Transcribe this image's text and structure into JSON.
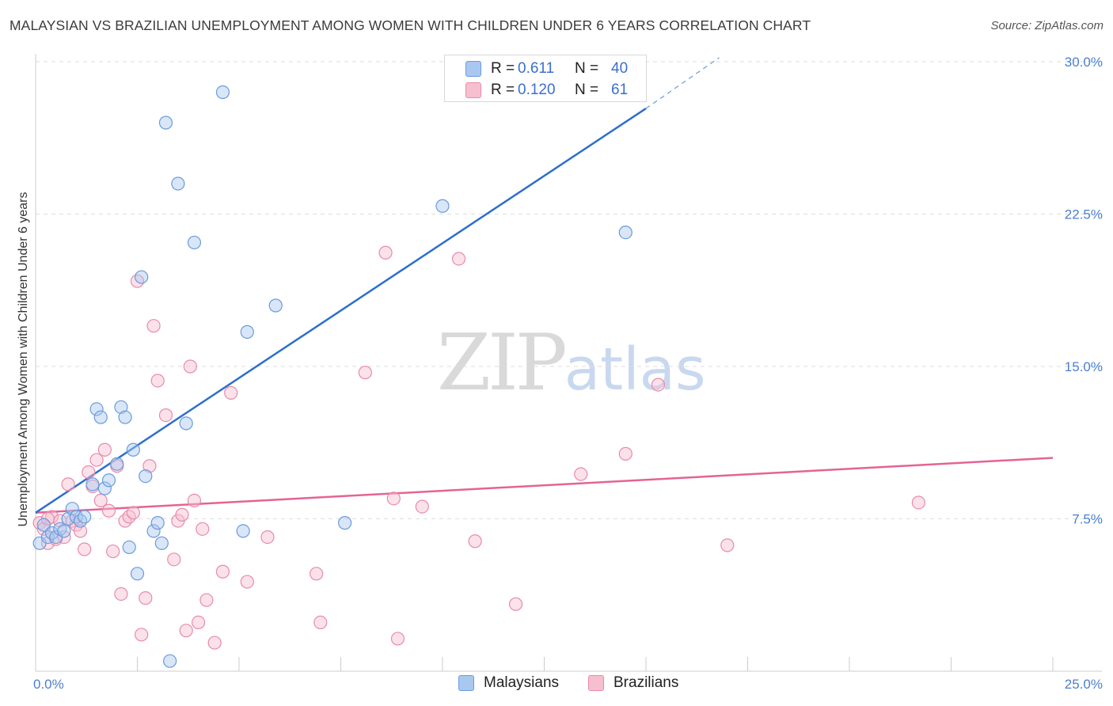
{
  "title": "MALAYSIAN VS BRAZILIAN UNEMPLOYMENT AMONG WOMEN WITH CHILDREN UNDER 6 YEARS CORRELATION CHART",
  "source": "Source: ZipAtlas.com",
  "watermark": {
    "zip": "ZIP",
    "atlas": "atlas"
  },
  "colors": {
    "malaysian_fill": "#a9c8f0",
    "malaysian_stroke": "#6a9bdc",
    "malaysian_line": "#2c6fcc",
    "brazilian_fill": "#f6bfd0",
    "brazilian_stroke": "#e98aaa",
    "brazilian_line": "#e36494",
    "axis_text": "#4a7fd0",
    "grid": "#dddddd"
  },
  "legend": {
    "malaysian": {
      "r_label": "R =",
      "r_value": "0.611",
      "n_label": "N =",
      "n_value": "40"
    },
    "brazilian": {
      "r_label": "R =",
      "r_value": "0.120",
      "n_label": "N =",
      "n_value": "61"
    }
  },
  "bottom_legend": {
    "malaysian": "Malaysians",
    "brazilian": "Brazilians"
  },
  "chart_data": {
    "type": "scatter",
    "title": "MALAYSIAN VS BRAZILIAN UNEMPLOYMENT AMONG WOMEN WITH CHILDREN UNDER 6 YEARS CORRELATION CHART",
    "xlabel": "",
    "ylabel": "Unemployment Among Women with Children Under 6 years",
    "xlim": [
      0,
      25
    ],
    "ylim": [
      0,
      30
    ],
    "x_tick_labels": [
      "0.0%",
      "25.0%"
    ],
    "y_ticks": [
      7.5,
      15.0,
      22.5,
      30.0
    ],
    "y_tick_labels": [
      "7.5%",
      "15.0%",
      "22.5%",
      "30.0%"
    ],
    "grid": true,
    "series": [
      {
        "name": "Malaysians",
        "r": 0.611,
        "n": 40,
        "trend": {
          "x0": 0,
          "y0": 7.8,
          "x1": 15.0,
          "y1": 27.7,
          "dashed_to": {
            "x": 16.8,
            "y": 30.2
          }
        },
        "points": [
          [
            0.1,
            6.3
          ],
          [
            0.2,
            7.2
          ],
          [
            0.3,
            6.6
          ],
          [
            0.4,
            6.8
          ],
          [
            0.5,
            6.6
          ],
          [
            0.6,
            7.0
          ],
          [
            0.7,
            6.9
          ],
          [
            0.8,
            7.5
          ],
          [
            0.9,
            8.0
          ],
          [
            1.0,
            7.6
          ],
          [
            1.1,
            7.4
          ],
          [
            1.2,
            7.6
          ],
          [
            1.4,
            9.2
          ],
          [
            1.5,
            12.9
          ],
          [
            1.6,
            12.5
          ],
          [
            1.7,
            9.0
          ],
          [
            1.8,
            9.4
          ],
          [
            2.0,
            10.2
          ],
          [
            2.1,
            13.0
          ],
          [
            2.2,
            12.5
          ],
          [
            2.3,
            6.1
          ],
          [
            2.4,
            10.9
          ],
          [
            2.5,
            4.8
          ],
          [
            2.6,
            19.4
          ],
          [
            2.7,
            9.6
          ],
          [
            2.9,
            6.9
          ],
          [
            3.0,
            7.3
          ],
          [
            3.1,
            6.3
          ],
          [
            3.2,
            27.0
          ],
          [
            3.3,
            0.5
          ],
          [
            3.5,
            24.0
          ],
          [
            3.7,
            12.2
          ],
          [
            3.9,
            21.1
          ],
          [
            4.6,
            28.5
          ],
          [
            5.1,
            6.9
          ],
          [
            5.2,
            16.7
          ],
          [
            5.9,
            18.0
          ],
          [
            7.6,
            7.3
          ],
          [
            10.0,
            22.9
          ],
          [
            14.5,
            21.6
          ]
        ]
      },
      {
        "name": "Brazilians",
        "r": 0.12,
        "n": 61,
        "trend": {
          "x0": 0,
          "y0": 7.8,
          "x1": 25,
          "y1": 10.5
        },
        "points": [
          [
            0.1,
            7.3
          ],
          [
            0.2,
            7.0
          ],
          [
            0.3,
            6.3
          ],
          [
            0.4,
            7.6
          ],
          [
            0.5,
            6.5
          ],
          [
            0.6,
            7.4
          ],
          [
            0.7,
            6.6
          ],
          [
            0.8,
            9.2
          ],
          [
            0.9,
            7.4
          ],
          [
            1.0,
            7.2
          ],
          [
            1.1,
            6.9
          ],
          [
            1.2,
            6.0
          ],
          [
            1.3,
            9.8
          ],
          [
            1.4,
            9.1
          ],
          [
            1.5,
            10.4
          ],
          [
            1.6,
            8.4
          ],
          [
            1.7,
            10.9
          ],
          [
            1.8,
            7.9
          ],
          [
            1.9,
            5.9
          ],
          [
            2.0,
            10.1
          ],
          [
            2.1,
            3.8
          ],
          [
            2.2,
            7.4
          ],
          [
            2.3,
            7.6
          ],
          [
            2.4,
            7.8
          ],
          [
            2.5,
            19.2
          ],
          [
            2.6,
            1.8
          ],
          [
            2.7,
            3.6
          ],
          [
            2.8,
            10.1
          ],
          [
            2.9,
            17.0
          ],
          [
            3.0,
            14.3
          ],
          [
            3.2,
            12.6
          ],
          [
            3.4,
            5.5
          ],
          [
            3.5,
            7.4
          ],
          [
            3.6,
            7.7
          ],
          [
            3.7,
            2.0
          ],
          [
            3.8,
            15.0
          ],
          [
            3.9,
            8.4
          ],
          [
            4.0,
            2.4
          ],
          [
            4.1,
            7.0
          ],
          [
            4.2,
            3.5
          ],
          [
            4.4,
            1.4
          ],
          [
            4.6,
            4.9
          ],
          [
            4.8,
            13.7
          ],
          [
            5.2,
            4.4
          ],
          [
            5.7,
            6.6
          ],
          [
            6.9,
            4.8
          ],
          [
            7.0,
            2.4
          ],
          [
            8.1,
            14.7
          ],
          [
            8.6,
            20.6
          ],
          [
            8.8,
            8.5
          ],
          [
            8.9,
            1.6
          ],
          [
            9.5,
            8.1
          ],
          [
            10.4,
            20.3
          ],
          [
            10.8,
            6.4
          ],
          [
            11.8,
            3.3
          ],
          [
            13.4,
            9.7
          ],
          [
            14.5,
            10.7
          ],
          [
            15.3,
            14.1
          ],
          [
            17.0,
            6.2
          ],
          [
            21.7,
            8.3
          ],
          [
            0.3,
            7.5
          ]
        ]
      }
    ]
  }
}
